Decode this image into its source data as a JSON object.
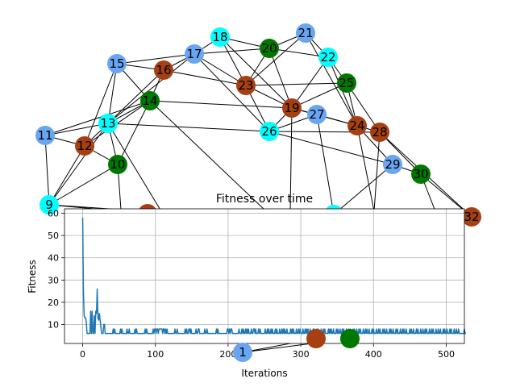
{
  "colors": {
    "cyan": "#00ffff",
    "green": "#007800",
    "brown": "#a64012",
    "blue": "#6aa5f2",
    "edge": "#000000",
    "line": "#1f77b4",
    "grid": "#b0b0b0"
  },
  "graph": {
    "nodes": [
      {
        "id": "1",
        "color": "blue"
      },
      {
        "id": "9",
        "color": "cyan"
      },
      {
        "id": "10",
        "color": "green"
      },
      {
        "id": "11",
        "color": "blue"
      },
      {
        "id": "12",
        "color": "brown"
      },
      {
        "id": "13",
        "color": "cyan"
      },
      {
        "id": "14",
        "color": "green"
      },
      {
        "id": "15",
        "color": "blue"
      },
      {
        "id": "16",
        "color": "brown"
      },
      {
        "id": "17",
        "color": "blue"
      },
      {
        "id": "18",
        "color": "cyan"
      },
      {
        "id": "19",
        "color": "brown"
      },
      {
        "id": "20",
        "color": "green"
      },
      {
        "id": "21",
        "color": "blue"
      },
      {
        "id": "22",
        "color": "cyan"
      },
      {
        "id": "23",
        "color": "brown"
      },
      {
        "id": "24",
        "color": "brown"
      },
      {
        "id": "25",
        "color": "green"
      },
      {
        "id": "26",
        "color": "cyan"
      },
      {
        "id": "27",
        "color": "blue"
      },
      {
        "id": "28",
        "color": "brown"
      },
      {
        "id": "29",
        "color": "blue"
      },
      {
        "id": "30",
        "color": "green"
      },
      {
        "id": "32",
        "color": "brown"
      },
      {
        "id": "",
        "color": "brown"
      },
      {
        "id": "",
        "color": "cyan"
      },
      {
        "id": "",
        "color": "brown"
      },
      {
        "id": "",
        "color": "green"
      }
    ],
    "edges": [
      [
        "15",
        "16"
      ],
      [
        "15",
        "17"
      ],
      [
        "15",
        "14"
      ],
      [
        "15",
        "13"
      ],
      [
        "15",
        "12"
      ],
      [
        "16",
        "17"
      ],
      [
        "16",
        "14"
      ],
      [
        "16",
        "13"
      ],
      [
        "16",
        "23"
      ],
      [
        "17",
        "18"
      ],
      [
        "17",
        "20"
      ],
      [
        "17",
        "23"
      ],
      [
        "17",
        "26"
      ],
      [
        "17",
        "13"
      ],
      [
        "18",
        "20"
      ],
      [
        "18",
        "23"
      ],
      [
        "18",
        "19"
      ],
      [
        "20",
        "21"
      ],
      [
        "20",
        "22"
      ],
      [
        "20",
        "19"
      ],
      [
        "20",
        "23"
      ],
      [
        "21",
        "22"
      ],
      [
        "21",
        "23"
      ],
      [
        "21",
        "24"
      ],
      [
        "22",
        "25"
      ],
      [
        "22",
        "19"
      ],
      [
        "22",
        "24"
      ],
      [
        "23",
        "25"
      ],
      [
        "23",
        "19"
      ],
      [
        "23",
        "26"
      ],
      [
        "25",
        "19"
      ],
      [
        "25",
        "24"
      ],
      [
        "25",
        "28"
      ],
      [
        "19",
        "24"
      ],
      [
        "19",
        "27"
      ],
      [
        "19",
        "26"
      ],
      [
        "27",
        "26"
      ],
      [
        "27",
        "24"
      ],
      [
        "24",
        "28"
      ],
      [
        "24",
        "29"
      ],
      [
        "26",
        "28"
      ],
      [
        "26",
        "29"
      ],
      [
        "26",
        "13"
      ],
      [
        "28",
        "30"
      ],
      [
        "29",
        "30"
      ],
      [
        "30",
        "32"
      ],
      [
        "28",
        "32"
      ],
      [
        "14",
        "13"
      ],
      [
        "14",
        "19"
      ],
      [
        "14",
        "12"
      ],
      [
        "14",
        "11"
      ],
      [
        "13",
        "11"
      ],
      [
        "13",
        "12"
      ],
      [
        "13",
        "10"
      ],
      [
        "13",
        "9"
      ],
      [
        "11",
        "12"
      ],
      [
        "11",
        "9"
      ],
      [
        "12",
        "10"
      ],
      [
        "12",
        "9"
      ],
      [
        "10",
        "9"
      ],
      [
        "10",
        "14"
      ]
    ],
    "partial_edges": [
      [
        "9",
        "bl1"
      ],
      [
        "9",
        "bl2"
      ],
      [
        "10",
        "bl2"
      ],
      [
        "13",
        "bl3"
      ],
      [
        "14",
        "bl4"
      ],
      [
        "24",
        "bl5"
      ],
      [
        "28",
        "bl5"
      ],
      [
        "29",
        "bl6"
      ],
      [
        "27",
        "bl6"
      ],
      [
        "30",
        "bl7"
      ],
      [
        "32",
        "bl7"
      ],
      [
        "19",
        "bl8"
      ],
      [
        "1",
        "br1"
      ],
      [
        "1",
        "br2"
      ]
    ]
  },
  "chart_data": {
    "type": "line",
    "title": "Fitness over time",
    "xlabel": "Iterations",
    "ylabel": "Fitness",
    "xlim": [
      -25,
      525
    ],
    "ylim": [
      1.5,
      62
    ],
    "xticks": [
      "0",
      "100",
      "200",
      "300",
      "400",
      "500"
    ],
    "xtick_values": [
      0,
      100,
      200,
      300,
      400,
      500
    ],
    "yticks": [
      "10",
      "20",
      "30",
      "40",
      "50",
      "60"
    ],
    "ytick_values": [
      10,
      20,
      30,
      40,
      50,
      60
    ],
    "grid": true,
    "series": [
      {
        "x_start": 0,
        "x_step": 1,
        "values": [
          58,
          25,
          14,
          13,
          13,
          11,
          6,
          6,
          6,
          6,
          6,
          16,
          6,
          16,
          6,
          6,
          14,
          6,
          16,
          15,
          26,
          13,
          12,
          15,
          12,
          9,
          6,
          6,
          6,
          10,
          10,
          6,
          6,
          6,
          6,
          6,
          6,
          6,
          6,
          6,
          6,
          6,
          8,
          6,
          8,
          6,
          6,
          6,
          6,
          6,
          6,
          6,
          8,
          6,
          8,
          6,
          6,
          6,
          6,
          6,
          6,
          8,
          6,
          6,
          8,
          6,
          6,
          6,
          6,
          6,
          6,
          6,
          8,
          6,
          8,
          6,
          6,
          6,
          6,
          6,
          6,
          6,
          6,
          6,
          6,
          6,
          8,
          6,
          8,
          6,
          6,
          6,
          6,
          6,
          6,
          6,
          6,
          8,
          6,
          8,
          8,
          6,
          8,
          8,
          6,
          8,
          8,
          8,
          8,
          8,
          6,
          8,
          8,
          6,
          8,
          6,
          8,
          6,
          6,
          6,
          6,
          6,
          6,
          6,
          6,
          6,
          6,
          8,
          6,
          6,
          8,
          6,
          6,
          6,
          6,
          6,
          6,
          6,
          6,
          6,
          6,
          8,
          6,
          8,
          6,
          6,
          8,
          8,
          6,
          8,
          6,
          6,
          6,
          6,
          6,
          6,
          8,
          6,
          6,
          8,
          8,
          6,
          6,
          6,
          6,
          6,
          6,
          6,
          8,
          6,
          6,
          8,
          6,
          6,
          6,
          6,
          6,
          6,
          6,
          6,
          6,
          6,
          6,
          6,
          8,
          6,
          8,
          6,
          6,
          6,
          6,
          6,
          6,
          6,
          6,
          6,
          6,
          6,
          6,
          8,
          8,
          6,
          8,
          6,
          8,
          8,
          6,
          6,
          6,
          6,
          6,
          6,
          6,
          6,
          6,
          8,
          6,
          6,
          6,
          8,
          6,
          8,
          6,
          6,
          8,
          6,
          8,
          6,
          8,
          6,
          6,
          6,
          8,
          6,
          6,
          8,
          8,
          6,
          8,
          6,
          6,
          6,
          8,
          6,
          8,
          6,
          6,
          6,
          6,
          6,
          6,
          8,
          6,
          6,
          8,
          6,
          8,
          6,
          6,
          8,
          6,
          8,
          6,
          6,
          6,
          8,
          6,
          8,
          6,
          6,
          6,
          8,
          6,
          6,
          8,
          6,
          8,
          6,
          8,
          6,
          6,
          8,
          6,
          6,
          6,
          6,
          8,
          6,
          8,
          6,
          8,
          6,
          6,
          6,
          8,
          6,
          6,
          8,
          6,
          8,
          6,
          6,
          6,
          8,
          6,
          6,
          8,
          6,
          8,
          6,
          8,
          6,
          6,
          8,
          6,
          6,
          6,
          8,
          6,
          8,
          6,
          6,
          8,
          6,
          8,
          6,
          6,
          6,
          8,
          6,
          6,
          8,
          6,
          8,
          6,
          6,
          6,
          6,
          8,
          6,
          8,
          6,
          8,
          6,
          6,
          8,
          6,
          6,
          6,
          8,
          6,
          8,
          6,
          6,
          8,
          6,
          6,
          8,
          6,
          8,
          6,
          6,
          6,
          8,
          6,
          6,
          8,
          6,
          8,
          6,
          6,
          6,
          8,
          6,
          8,
          6,
          6,
          8,
          6,
          6,
          8,
          6,
          8,
          6,
          6,
          6,
          8,
          6,
          6,
          8,
          6,
          8,
          6,
          6,
          8,
          6,
          6,
          6,
          8,
          6,
          8,
          6,
          6,
          6,
          8,
          6,
          6,
          8,
          6,
          8,
          6,
          6,
          6,
          8,
          6,
          8,
          6,
          6,
          8,
          6,
          6,
          6,
          8,
          6,
          8,
          6,
          6,
          8,
          6,
          6,
          6,
          8,
          6,
          8,
          6,
          6,
          6,
          8,
          6,
          6,
          8,
          6,
          8,
          6,
          6,
          8,
          6,
          6,
          6,
          6,
          8,
          6,
          8,
          6,
          6,
          8,
          6,
          6,
          6,
          8,
          6,
          8,
          6,
          6,
          6,
          8,
          6,
          6,
          8,
          6,
          6,
          8,
          6,
          8,
          6,
          6,
          6,
          8,
          6,
          6,
          8,
          6,
          8,
          6,
          6,
          6,
          8,
          6,
          6,
          8,
          6,
          6,
          8,
          6,
          6,
          6,
          8,
          6,
          8,
          6,
          6,
          8,
          6,
          6,
          6,
          8,
          6,
          8,
          6,
          6,
          6,
          8,
          6,
          6,
          8,
          6,
          6,
          8,
          6,
          6,
          6,
          6,
          6,
          6,
          6,
          8,
          6,
          6
        ]
      }
    ]
  }
}
